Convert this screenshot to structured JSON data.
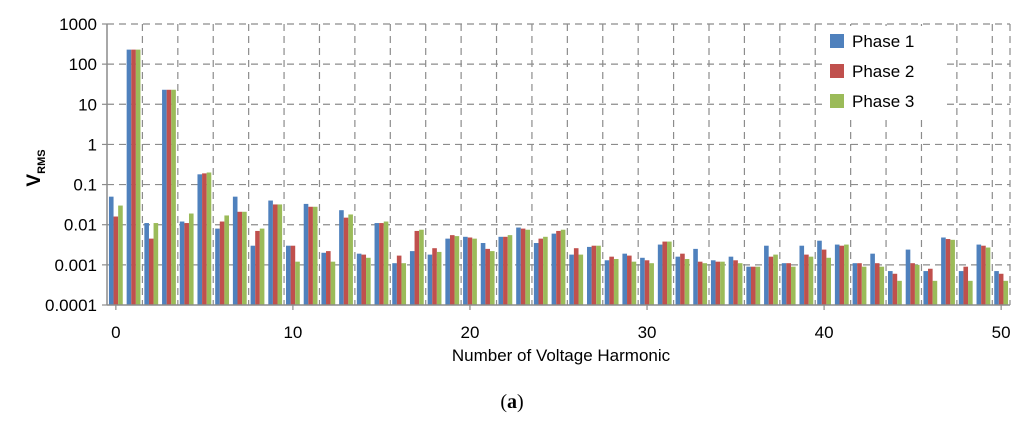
{
  "chart_data": {
    "type": "bar",
    "title": "",
    "xlabel": "Number of Voltage Harmonic",
    "ylabel_main": "V",
    "ylabel_sub": "RMS",
    "y_scale": "log",
    "ylim": [
      0.0001,
      1000
    ],
    "y_ticks": [
      "0.0001",
      "0.001",
      "0.01",
      "0.1",
      "1",
      "10",
      "100",
      "1000"
    ],
    "x_ticks": [
      "0",
      "10",
      "20",
      "30",
      "40",
      "50"
    ],
    "grid": true,
    "legend_position": "top-right",
    "x": [
      0,
      1,
      2,
      3,
      4,
      5,
      6,
      7,
      8,
      9,
      10,
      11,
      12,
      13,
      14,
      15,
      16,
      17,
      18,
      19,
      20,
      21,
      22,
      23,
      24,
      25,
      26,
      27,
      28,
      29,
      30,
      31,
      32,
      33,
      34,
      35,
      36,
      37,
      38,
      39,
      40,
      41,
      42,
      43,
      44,
      45,
      46,
      47,
      48,
      49,
      50
    ],
    "series": [
      {
        "name": "Phase 1",
        "color": "#4F81BD",
        "values": [
          0.05,
          230,
          0.011,
          23,
          0.012,
          0.18,
          0.008,
          0.05,
          0.003,
          0.04,
          0.003,
          0.033,
          0.002,
          0.023,
          0.0019,
          0.011,
          0.0011,
          0.0022,
          0.0018,
          0.0045,
          0.005,
          0.0035,
          0.005,
          0.0085,
          0.0035,
          0.006,
          0.0018,
          0.0028,
          0.0013,
          0.0019,
          0.0015,
          0.0032,
          0.0016,
          0.0025,
          0.0013,
          0.0016,
          0.0009,
          0.003,
          0.0011,
          0.003,
          0.004,
          0.0032,
          0.0011,
          0.0019,
          0.0007,
          0.0024,
          0.0007,
          0.0048,
          0.0007,
          0.0032,
          0.0007
        ]
      },
      {
        "name": "Phase 2",
        "color": "#C0504D",
        "values": [
          0.016,
          230,
          0.0045,
          23,
          0.011,
          0.19,
          0.012,
          0.021,
          0.007,
          0.032,
          0.003,
          0.028,
          0.0022,
          0.015,
          0.0018,
          0.011,
          0.0017,
          0.007,
          0.0026,
          0.0055,
          0.0048,
          0.0025,
          0.005,
          0.008,
          0.0045,
          0.007,
          0.0026,
          0.003,
          0.0016,
          0.0017,
          0.0013,
          0.0038,
          0.0019,
          0.0012,
          0.0012,
          0.0013,
          0.0009,
          0.0016,
          0.0011,
          0.0018,
          0.0024,
          0.003,
          0.0011,
          0.0011,
          0.0006,
          0.0011,
          0.0008,
          0.0044,
          0.0009,
          0.003,
          0.0006
        ]
      },
      {
        "name": "Phase 3",
        "color": "#9BBB59",
        "values": [
          0.03,
          230,
          0.011,
          23,
          0.019,
          0.2,
          0.017,
          0.021,
          0.008,
          0.032,
          0.0012,
          0.028,
          0.0012,
          0.018,
          0.0015,
          0.012,
          0.0011,
          0.0075,
          0.0021,
          0.0052,
          0.0045,
          0.0022,
          0.0055,
          0.0075,
          0.005,
          0.0075,
          0.0018,
          0.003,
          0.0014,
          0.0012,
          0.0011,
          0.0038,
          0.0014,
          0.0011,
          0.0012,
          0.0011,
          0.0009,
          0.0018,
          0.0009,
          0.0016,
          0.0015,
          0.0032,
          0.0009,
          0.0009,
          0.0004,
          0.001,
          0.0004,
          0.0042,
          0.0004,
          0.0027,
          0.0004
        ]
      }
    ]
  },
  "caption": {
    "open": "(",
    "letter": "a",
    "close": ")"
  }
}
